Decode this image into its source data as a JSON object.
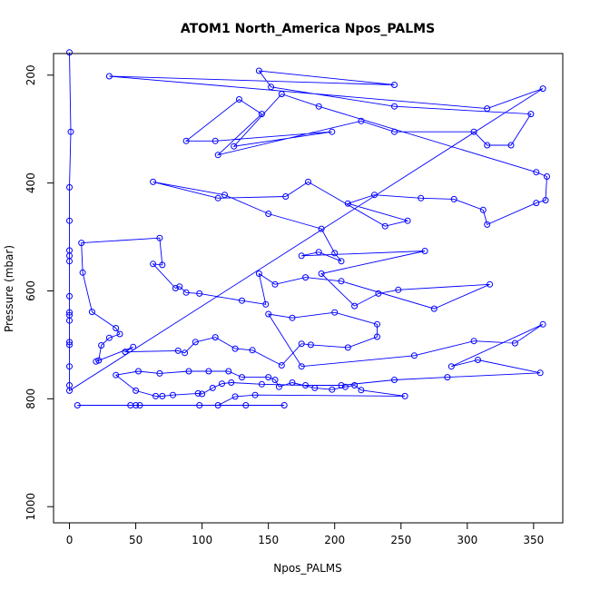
{
  "chart_data": {
    "type": "line",
    "title": "ATOM1 North_America Npos_PALMS",
    "xlabel": "Npos_PALMS",
    "ylabel": "Pressure (mbar)",
    "xlim": [
      -12,
      372
    ],
    "ylim": [
      1030,
      160
    ],
    "y_reversed": true,
    "grid": false,
    "x_ticks": [
      0,
      50,
      100,
      150,
      200,
      250,
      300,
      350
    ],
    "y_ticks": [
      200,
      400,
      600,
      800,
      1000
    ],
    "color": "#0000ff",
    "marker": "open-circle",
    "series": [
      {
        "points": [
          [
            0,
            158
          ],
          [
            1,
            305
          ],
          [
            0,
            408
          ],
          [
            0,
            470
          ],
          [
            0,
            525
          ],
          [
            0,
            535
          ],
          [
            0,
            545
          ],
          [
            0,
            610
          ],
          [
            0,
            640
          ],
          [
            0,
            645
          ],
          [
            0,
            655
          ],
          [
            0,
            695
          ],
          [
            0,
            700
          ],
          [
            0,
            740
          ],
          [
            0,
            775
          ],
          [
            0,
            785
          ],
          [
            357,
            225
          ],
          [
            315,
            262
          ],
          [
            30,
            202
          ],
          [
            245,
            218
          ],
          [
            143,
            192
          ],
          [
            152,
            222
          ],
          [
            245,
            258
          ],
          [
            348,
            272
          ],
          [
            333,
            330
          ],
          [
            315,
            330
          ],
          [
            305,
            305
          ],
          [
            245,
            305
          ],
          [
            220,
            285
          ],
          [
            112,
            348
          ],
          [
            145,
            272
          ],
          [
            128,
            245
          ],
          [
            88,
            322
          ],
          [
            110,
            322
          ],
          [
            198,
            305
          ],
          [
            124,
            332
          ],
          [
            160,
            235
          ],
          [
            188,
            258
          ],
          [
            352,
            380
          ],
          [
            360,
            388
          ],
          [
            359,
            432
          ],
          [
            352,
            437
          ],
          [
            315,
            477
          ],
          [
            312,
            450
          ],
          [
            290,
            430
          ],
          [
            265,
            428
          ],
          [
            230,
            422
          ],
          [
            210,
            438
          ],
          [
            255,
            470
          ],
          [
            238,
            480
          ],
          [
            180,
            398
          ],
          [
            163,
            425
          ],
          [
            112,
            428
          ],
          [
            63,
            398
          ],
          [
            117,
            422
          ],
          [
            150,
            457
          ],
          [
            190,
            485
          ],
          [
            200,
            530
          ],
          [
            205,
            545
          ],
          [
            188,
            528
          ],
          [
            175,
            535
          ],
          [
            268,
            526
          ],
          [
            190,
            568
          ],
          [
            215,
            628
          ],
          [
            233,
            605
          ],
          [
            248,
            598
          ],
          [
            317,
            588
          ],
          [
            275,
            633
          ],
          [
            205,
            582
          ],
          [
            178,
            575
          ],
          [
            155,
            588
          ],
          [
            143,
            568
          ],
          [
            148,
            625
          ],
          [
            130,
            618
          ],
          [
            98,
            605
          ],
          [
            88,
            603
          ],
          [
            83,
            592
          ],
          [
            80,
            595
          ],
          [
            63,
            550
          ],
          [
            70,
            552
          ],
          [
            68,
            502
          ],
          [
            9,
            511
          ],
          [
            10,
            566
          ],
          [
            17,
            639
          ],
          [
            35,
            669
          ],
          [
            38,
            680
          ],
          [
            30,
            687
          ],
          [
            24,
            701
          ],
          [
            22,
            729
          ],
          [
            20,
            731
          ],
          [
            48,
            704
          ],
          [
            42,
            713
          ],
          [
            82,
            711
          ],
          [
            87,
            715
          ],
          [
            95,
            695
          ],
          [
            110,
            686
          ],
          [
            125,
            707
          ],
          [
            138,
            710
          ],
          [
            160,
            738
          ],
          [
            175,
            698
          ],
          [
            182,
            700
          ],
          [
            210,
            705
          ],
          [
            232,
            685
          ],
          [
            232,
            662
          ],
          [
            200,
            640
          ],
          [
            168,
            650
          ],
          [
            150,
            643
          ],
          [
            175,
            740
          ],
          [
            260,
            720
          ],
          [
            305,
            693
          ],
          [
            336,
            697
          ],
          [
            357,
            662
          ],
          [
            288,
            740
          ],
          [
            308,
            728
          ],
          [
            355,
            752
          ],
          [
            285,
            760
          ],
          [
            245,
            765
          ],
          [
            205,
            775
          ],
          [
            178,
            775
          ],
          [
            145,
            773
          ],
          [
            122,
            770
          ],
          [
            115,
            772
          ],
          [
            108,
            780
          ],
          [
            100,
            791
          ],
          [
            97,
            790
          ],
          [
            78,
            793
          ],
          [
            70,
            795
          ],
          [
            65,
            795
          ],
          [
            50,
            785
          ],
          [
            35,
            756
          ],
          [
            52,
            749
          ],
          [
            68,
            753
          ],
          [
            90,
            749
          ],
          [
            105,
            749
          ],
          [
            120,
            749
          ],
          [
            130,
            760
          ],
          [
            150,
            760
          ],
          [
            155,
            765
          ],
          [
            158,
            778
          ],
          [
            168,
            770
          ],
          [
            185,
            780
          ],
          [
            198,
            783
          ],
          [
            208,
            778
          ],
          [
            215,
            775
          ],
          [
            220,
            784
          ],
          [
            253,
            795
          ],
          [
            140,
            793
          ],
          [
            125,
            796
          ],
          [
            112,
            812
          ],
          [
            98,
            812
          ],
          [
            50,
            812
          ],
          [
            46,
            812
          ],
          [
            6,
            812
          ],
          [
            133,
            812
          ],
          [
            162,
            812
          ],
          [
            53,
            812
          ]
        ]
      }
    ]
  }
}
